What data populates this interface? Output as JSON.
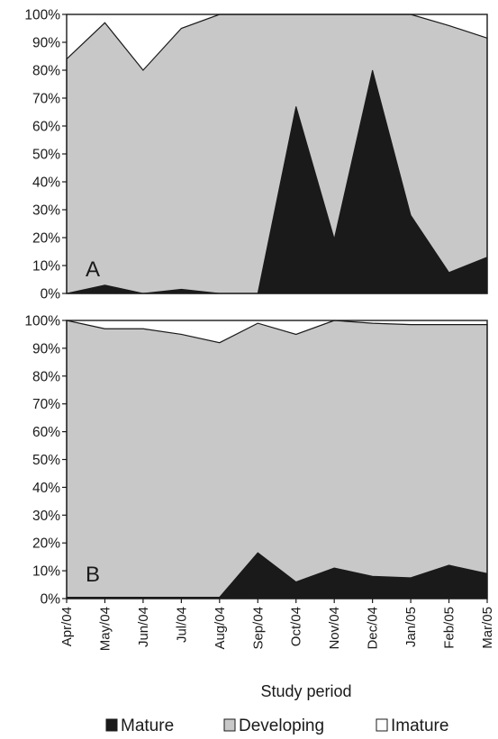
{
  "chart_data": {
    "type": "area",
    "stacked_percent": true,
    "categories": [
      "Apr/04",
      "May/04",
      "Jun/04",
      "Jul/04",
      "Aug/04",
      "Sep/04",
      "Oct/04",
      "Nov/04",
      "Dec/04",
      "Jan/05",
      "Feb/05",
      "Mar/05"
    ],
    "xlabel": "Study period",
    "yticks": [
      "0%",
      "10%",
      "20%",
      "30%",
      "40%",
      "50%",
      "60%",
      "70%",
      "80%",
      "90%",
      "100%"
    ],
    "ylim": [
      0,
      100
    ],
    "legend_position": "bottom",
    "legend": [
      {
        "name": "Mature",
        "color": "#1a1a1a"
      },
      {
        "name": "Developing",
        "color": "#c8c8c8"
      },
      {
        "name": "Imature",
        "color": "#ffffff"
      }
    ],
    "panels": [
      {
        "label": "A",
        "series": [
          {
            "name": "Mature",
            "values": [
              0,
              3,
              0,
              1.5,
              0,
              0,
              67,
              19.5,
              80,
              28,
              7.5,
              13
            ]
          },
          {
            "name": "Developing",
            "values": [
              84,
              94,
              80,
              93.5,
              100,
              100,
              33,
              80.5,
              20,
              72,
              88.5,
              78.5
            ]
          },
          {
            "name": "Imature",
            "values": [
              16,
              3,
              20,
              5,
              0,
              0,
              0,
              0,
              0,
              0,
              4,
              8.5
            ]
          }
        ]
      },
      {
        "label": "B",
        "series": [
          {
            "name": "Mature",
            "values": [
              0.5,
              0.5,
              0.5,
              0.5,
              0.5,
              16.5,
              6,
              11,
              8,
              7.5,
              12,
              9
            ]
          },
          {
            "name": "Developing",
            "values": [
              99.5,
              96.5,
              96.5,
              94.5,
              91.5,
              82.5,
              89,
              89,
              91,
              91,
              86.5,
              89.5
            ]
          },
          {
            "name": "Imature",
            "values": [
              0,
              3,
              3,
              5,
              8,
              1,
              5,
              0,
              1,
              1.5,
              1.5,
              1.5
            ]
          }
        ]
      }
    ]
  }
}
